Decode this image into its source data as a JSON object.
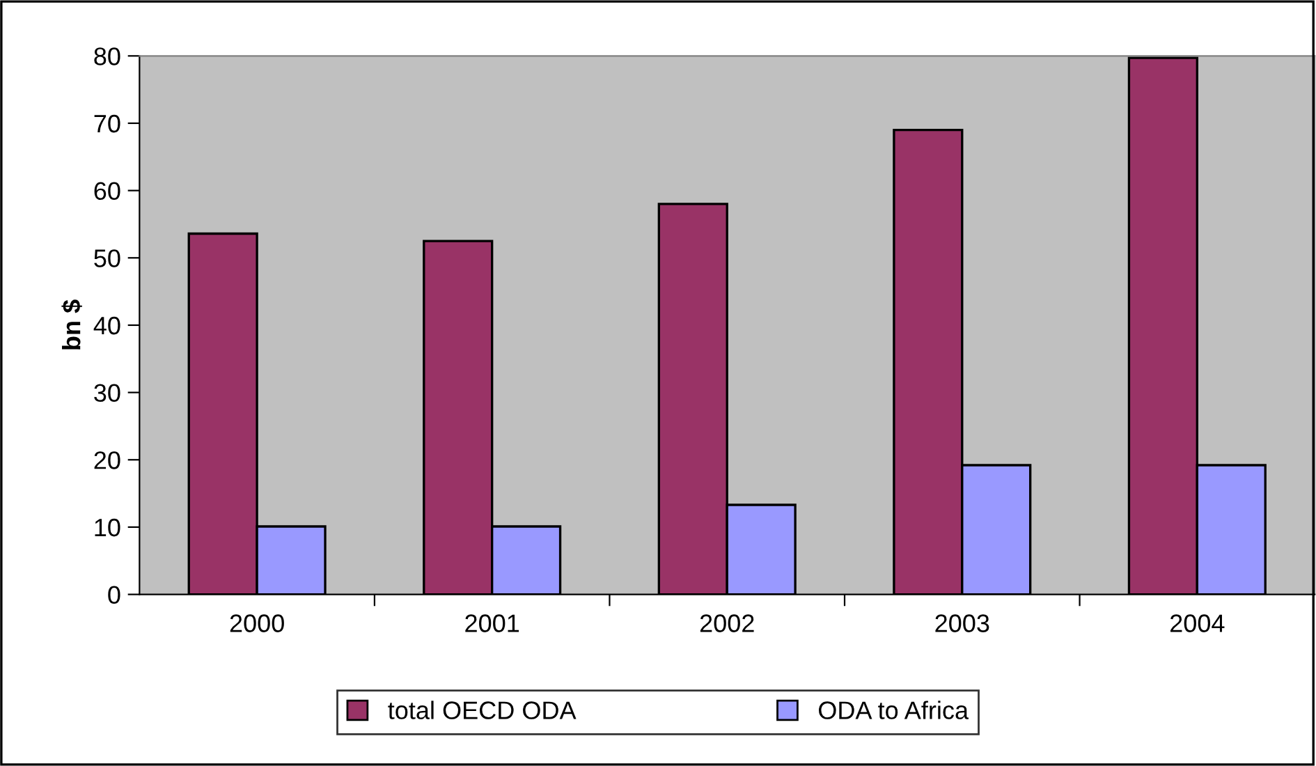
{
  "chart_data": {
    "type": "bar",
    "ylabel": "bn $",
    "categories": [
      "2000",
      "2001",
      "2002",
      "2003",
      "2004"
    ],
    "series": [
      {
        "name": "total OECD ODA",
        "color": "#993366",
        "values": [
          53.6,
          52.5,
          58.0,
          69.0,
          79.7
        ]
      },
      {
        "name": "ODA to Africa",
        "color": "#9999ff",
        "values": [
          10.1,
          10.1,
          13.3,
          19.2,
          19.2
        ]
      }
    ],
    "ylim": [
      0,
      80
    ],
    "yticks": [
      0,
      10,
      20,
      30,
      40,
      50,
      60,
      70,
      80
    ],
    "grid": false,
    "legend": "bottom"
  }
}
